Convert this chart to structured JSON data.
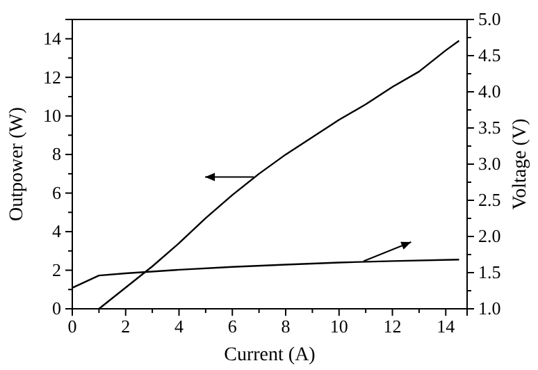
{
  "chart_data": {
    "type": "line",
    "xlabel": "Current (A)",
    "ylabel": "Outpower (W)",
    "y2label": "Voltage (V)",
    "xlim": [
      0,
      14.8
    ],
    "xticks": [
      0,
      2,
      4,
      6,
      8,
      10,
      12,
      14
    ],
    "ylim": [
      0,
      15
    ],
    "yticks": [
      0,
      2,
      4,
      6,
      8,
      10,
      12,
      14
    ],
    "y2lim": [
      1,
      5
    ],
    "y2ticks": [
      {
        "value": 1,
        "label": "1.0"
      },
      {
        "value": 1.5,
        "label": "1.5"
      },
      {
        "value": 2,
        "label": "2.0"
      },
      {
        "value": 2.5,
        "label": "2.5"
      },
      {
        "value": 3,
        "label": "3.0"
      },
      {
        "value": 3.5,
        "label": "3.5"
      },
      {
        "value": 4,
        "label": "4.0"
      },
      {
        "value": 4.5,
        "label": "4.5"
      },
      {
        "value": 5,
        "label": "5.0"
      }
    ],
    "grid": false,
    "marker": "none",
    "line_style": "solid",
    "series": [
      {
        "color": "#000000",
        "x": [
          1,
          2,
          3,
          4,
          5,
          6,
          7,
          8,
          9,
          10,
          11,
          12,
          13,
          14,
          14.5
        ],
        "values": [
          0,
          1.1,
          2.2,
          3.4,
          4.7,
          5.9,
          7.0,
          8.0,
          8.9,
          9.8,
          10.6,
          11.5,
          12.3,
          13.4,
          13.9
        ]
      },
      {
        "color": "#000000",
        "axis": "y2",
        "x": [
          0,
          1,
          2,
          4,
          6,
          8,
          10,
          12,
          14.5
        ],
        "values": [
          1.29,
          1.46,
          1.49,
          1.54,
          1.58,
          1.61,
          1.64,
          1.66,
          1.68
        ]
      }
    ]
  }
}
